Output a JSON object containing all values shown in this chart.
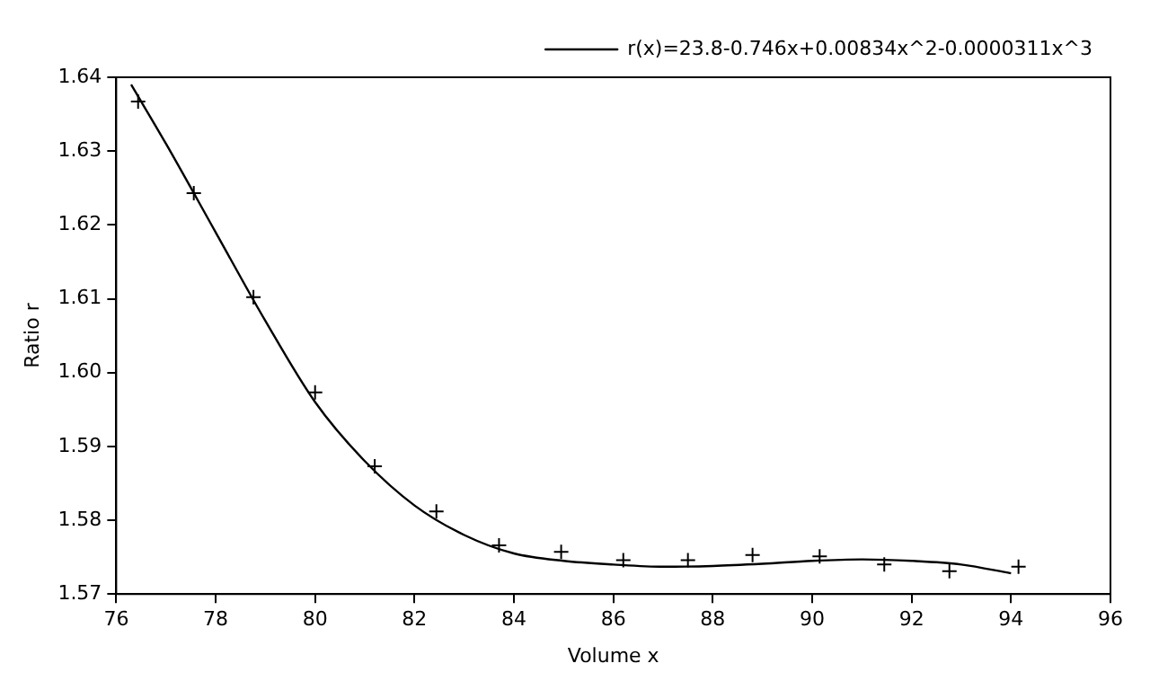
{
  "chart_data": {
    "type": "scatter",
    "xlabel": "Volume x",
    "ylabel": "Ratio r",
    "xlim": [
      76,
      96
    ],
    "xticks": [
      76,
      78,
      80,
      82,
      84,
      86,
      88,
      90,
      92,
      94,
      96
    ],
    "ylim": [
      1.57,
      1.64
    ],
    "yticks": [
      1.57,
      1.58,
      1.59,
      {
        "value": 1.6,
        "label": "1.60"
      },
      1.61,
      1.62,
      1.63,
      1.64
    ],
    "grid": false,
    "legend": "top right",
    "series": [
      {
        "marker": "cross",
        "color": "#000000",
        "x": [
          76.44,
          77.56,
          78.76,
          80.0,
          81.2,
          82.44,
          83.7,
          84.95,
          86.2,
          87.5,
          88.8,
          90.15,
          91.45,
          92.76,
          94.15
        ],
        "values": [
          1.6367,
          1.6243,
          1.6102,
          1.5973,
          1.5873,
          1.5812,
          1.5766,
          1.5757,
          1.5746,
          1.5746,
          1.5753,
          1.5751,
          1.574,
          1.5731,
          1.5737
        ]
      },
      {
        "type": "line",
        "marker": "none",
        "name": "r(x)=23.8-0.746x+0.00834x^2-0.0000311x^3",
        "color": "#000000",
        "x": [
          76.3,
          77,
          78,
          79,
          80,
          81,
          82,
          83,
          84,
          85,
          86,
          87,
          88,
          89,
          90,
          91,
          92,
          93,
          94
        ],
        "values": [
          1.639,
          1.631,
          1.619,
          1.607,
          1.596,
          1.588,
          1.582,
          1.578,
          1.5755,
          1.5745,
          1.574,
          1.5737,
          1.5738,
          1.5741,
          1.5745,
          1.5747,
          1.5745,
          1.574,
          1.5728
        ]
      }
    ]
  }
}
